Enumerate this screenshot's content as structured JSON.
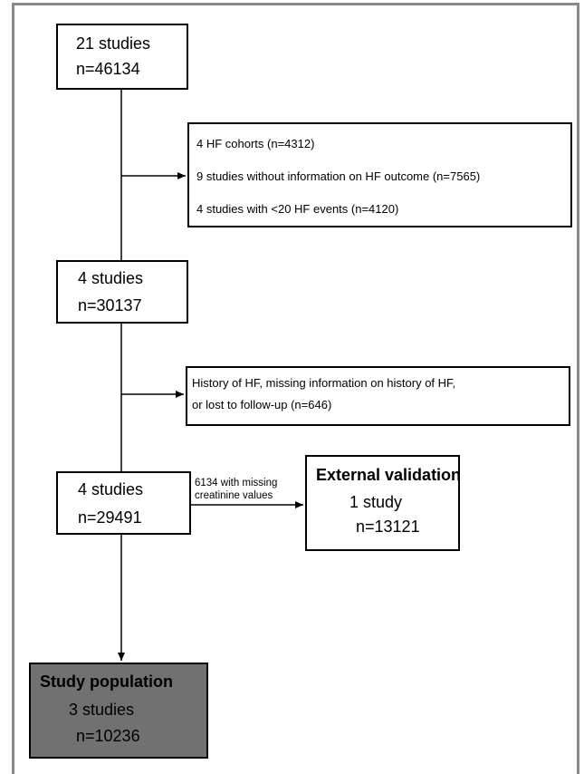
{
  "boxes": {
    "start": {
      "line1": "21 studies",
      "line2": "n=46134"
    },
    "excl1": {
      "items": [
        "4 HF cohorts (n=4312)",
        "9 studies without information on HF outcome (n=7565)",
        "4 studies with <20 HF events (n=4120)"
      ]
    },
    "step2": {
      "line1": "4 studies",
      "line2": "n=30137"
    },
    "excl2": {
      "line1": "History of HF, missing information on history of HF,",
      "line2": "or lost to follow-up (n=646)"
    },
    "step3": {
      "line1": "4 studies",
      "line2": "n=29491"
    },
    "validation_note": {
      "line1": "6134 with missing",
      "line2": "creatinine values"
    },
    "validation": {
      "title": "External validation",
      "line1": "1 study",
      "line2": "n=13121"
    },
    "population": {
      "title": "Study population",
      "line1": "3 studies",
      "line2": "n=10236"
    }
  },
  "colors": {
    "frame": "#8a8a8a",
    "population_fill": "#717171",
    "line": "#000000"
  }
}
